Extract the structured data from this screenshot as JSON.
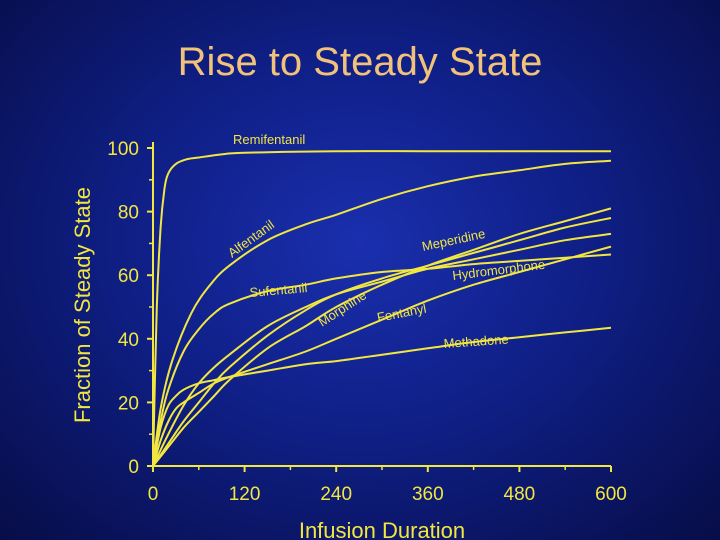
{
  "slide": {
    "title": "Rise to Steady State"
  },
  "colors": {
    "curve": "#f2e640",
    "text": "#f2e640",
    "title": "#f3c27a"
  },
  "chart_data": {
    "type": "line",
    "title": "Rise to Steady State",
    "xlabel": "Infusion Duration",
    "ylabel": "Fraction of Steady State",
    "xlim": [
      0,
      600
    ],
    "ylim": [
      0,
      100
    ],
    "xticks": [
      0,
      120,
      240,
      360,
      480,
      600
    ],
    "yticks": [
      0,
      20,
      40,
      60,
      80,
      100
    ],
    "grid": false,
    "legend": "inline labels",
    "series": [
      {
        "name": "Remifentanil",
        "x": [
          0,
          5,
          10,
          15,
          20,
          30,
          45,
          60,
          90,
          120,
          240,
          360,
          480,
          600
        ],
        "y": [
          0,
          50,
          75,
          87,
          92,
          95,
          96.5,
          97,
          98,
          98.5,
          99,
          99,
          99,
          99
        ]
      },
      {
        "name": "Alfentanil",
        "x": [
          0,
          10,
          25,
          50,
          75,
          100,
          150,
          200,
          240,
          300,
          360,
          420,
          480,
          540,
          600
        ],
        "y": [
          0,
          18,
          33,
          48,
          57,
          63,
          71,
          76,
          79,
          84,
          88,
          91,
          93,
          95,
          96
        ]
      },
      {
        "name": "Sufentanil",
        "x": [
          0,
          10,
          20,
          40,
          60,
          80,
          100,
          150,
          200,
          240,
          300,
          360,
          420,
          480,
          540,
          600
        ],
        "y": [
          0,
          14,
          24,
          36,
          43,
          48,
          51,
          55,
          57,
          59,
          61,
          62,
          63.5,
          64.5,
          65.5,
          66.5
        ]
      },
      {
        "name": "Fentanyl",
        "x": [
          0,
          20,
          40,
          60,
          80,
          100,
          150,
          200,
          240,
          300,
          360,
          420,
          480,
          540,
          600
        ],
        "y": [
          0,
          10,
          19,
          26,
          31,
          35,
          44,
          50,
          54,
          58,
          62,
          65,
          68,
          71,
          73
        ]
      },
      {
        "name": "Morphine",
        "x": [
          0,
          20,
          40,
          60,
          80,
          100,
          150,
          200,
          240,
          300,
          360,
          420,
          480,
          540,
          600
        ],
        "y": [
          0,
          7,
          14,
          20,
          26,
          31,
          41,
          49,
          54,
          59,
          63,
          67,
          71,
          75,
          78
        ]
      },
      {
        "name": "Meperidine",
        "x": [
          0,
          20,
          40,
          60,
          80,
          100,
          150,
          200,
          240,
          300,
          360,
          420,
          480,
          540,
          600
        ],
        "y": [
          0,
          6,
          12,
          17,
          22,
          27,
          37,
          44,
          50,
          57,
          63,
          68,
          73,
          77,
          81
        ]
      },
      {
        "name": "Hydromorphone",
        "x": [
          0,
          10,
          20,
          30,
          40,
          60,
          80,
          100,
          150,
          200,
          240,
          300,
          360,
          420,
          480,
          540,
          600
        ],
        "y": [
          0,
          8,
          14,
          18,
          20,
          23,
          26,
          28,
          32,
          36,
          40,
          46,
          52,
          57,
          61,
          65,
          69
        ]
      },
      {
        "name": "Methadone",
        "x": [
          0,
          10,
          20,
          30,
          40,
          60,
          80,
          100,
          150,
          200,
          240,
          300,
          360,
          420,
          480,
          540,
          600
        ],
        "y": [
          0,
          12,
          19,
          22,
          24,
          26,
          27,
          28,
          30,
          32,
          33,
          35,
          37,
          39,
          40.5,
          42,
          43.5
        ]
      }
    ],
    "annotations": [
      {
        "text": "Remifentanil",
        "series": "Remifentanil"
      },
      {
        "text": "Alfentanil",
        "series": "Alfentanil"
      },
      {
        "text": "Sufentanil",
        "series": "Sufentanil"
      },
      {
        "text": "Fentanyl",
        "series": "Fentanyl"
      },
      {
        "text": "Morphine",
        "series": "Morphine"
      },
      {
        "text": "Meperidine",
        "series": "Meperidine"
      },
      {
        "text": "Hydromorphone",
        "series": "Hydromorphone"
      },
      {
        "text": "Methadone",
        "series": "Methadone"
      }
    ]
  }
}
